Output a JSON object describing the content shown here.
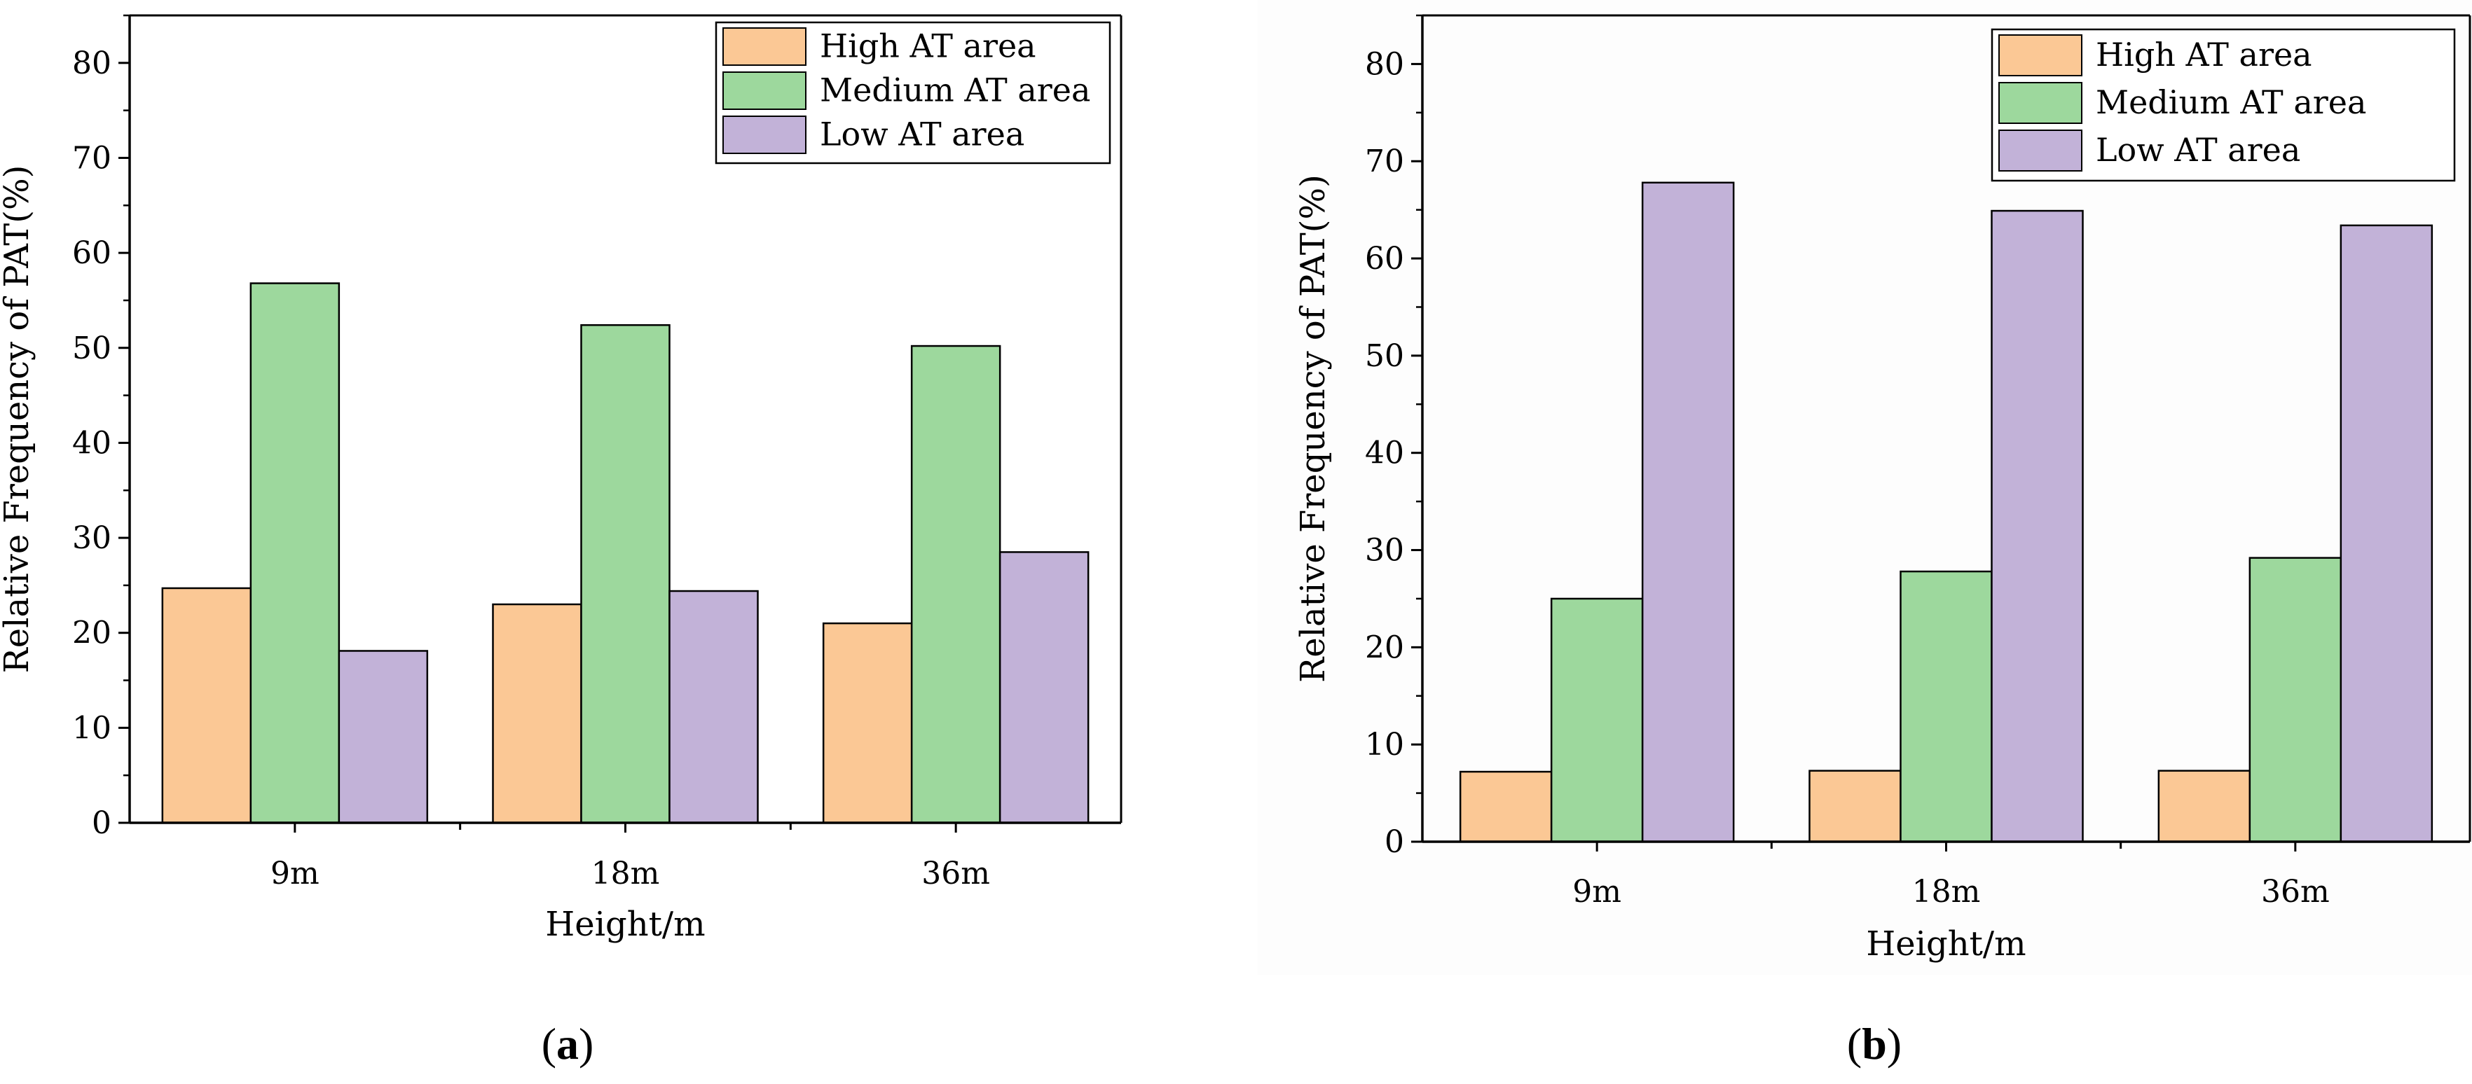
{
  "colors": {
    "high": "#fbc895",
    "medium": "#9dd89d",
    "low": "#c2b2d8",
    "panel_b_background": "#fdfdfd"
  },
  "chart_data": [
    {
      "type": "bar",
      "panel": "a",
      "categories": [
        "9m",
        "18m",
        "36m"
      ],
      "series": [
        {
          "name": "High AT area",
          "values": [
            24.7,
            23.0,
            21.0
          ]
        },
        {
          "name": "Medium AT area",
          "values": [
            56.8,
            52.4,
            50.2
          ]
        },
        {
          "name": "Low AT area",
          "values": [
            18.1,
            24.4,
            28.5
          ]
        }
      ],
      "xlabel": "Height/m",
      "ylabel": "Relative Frequency of PAT(%)",
      "ylim": [
        0,
        85
      ],
      "yticks": [
        0,
        10,
        20,
        30,
        40,
        50,
        60,
        70,
        80
      ],
      "legend": "top-right",
      "grid": false
    },
    {
      "type": "bar",
      "panel": "b",
      "categories": [
        "9m",
        "18m",
        "36m"
      ],
      "series": [
        {
          "name": "High AT area",
          "values": [
            7.2,
            7.3,
            7.3
          ]
        },
        {
          "name": "Medium AT area",
          "values": [
            25.0,
            27.8,
            29.2
          ]
        },
        {
          "name": "Low AT area",
          "values": [
            67.8,
            64.9,
            63.4
          ]
        }
      ],
      "xlabel": "Height/m",
      "ylabel": "Relative Frequency of PAT(%)",
      "ylim": [
        0,
        85
      ],
      "yticks": [
        0,
        10,
        20,
        30,
        40,
        50,
        60,
        70,
        80
      ],
      "legend": "top-right",
      "grid": false
    }
  ],
  "captions": {
    "a": {
      "open": "(",
      "letter": "a",
      "close": ")"
    },
    "b": {
      "open": "(",
      "letter": "b",
      "close": ")"
    }
  }
}
